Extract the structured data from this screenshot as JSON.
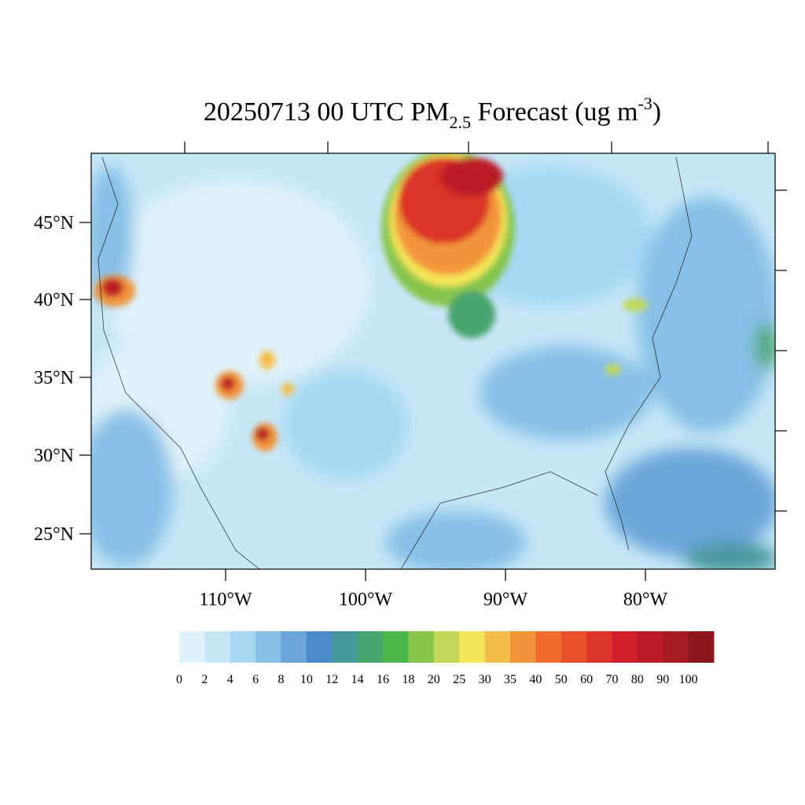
{
  "title": {
    "main": "20250713 00 UTC PM",
    "subscript": "2.5",
    "middle": " Forecast (ug m",
    "superscript": "-3",
    "end": ")"
  },
  "lat_labels": [
    "45°N",
    "40°N",
    "35°N",
    "30°N",
    "25°N"
  ],
  "lon_labels": [
    "110°W",
    "100°W",
    "90°W",
    "80°W"
  ],
  "colorbar": {
    "labels": [
      0,
      2,
      4,
      6,
      8,
      10,
      12,
      14,
      16,
      18,
      20,
      25,
      30,
      35,
      40,
      50,
      60,
      70,
      80,
      90,
      100
    ],
    "colors": [
      "#e0f3fb",
      "#c6e7f7",
      "#a6d8f3",
      "#87c0e6",
      "#6aa6d9",
      "#4a8bcb",
      "#47999e",
      "#48a56e",
      "#4bb74a",
      "#86c54e",
      "#c2d857",
      "#f4e65a",
      "#f7bd4a",
      "#f3953a",
      "#ef6e2b",
      "#e5502a",
      "#da3527",
      "#cf1f2b",
      "#bb1a28",
      "#a61a22",
      "#8c161c"
    ]
  }
}
